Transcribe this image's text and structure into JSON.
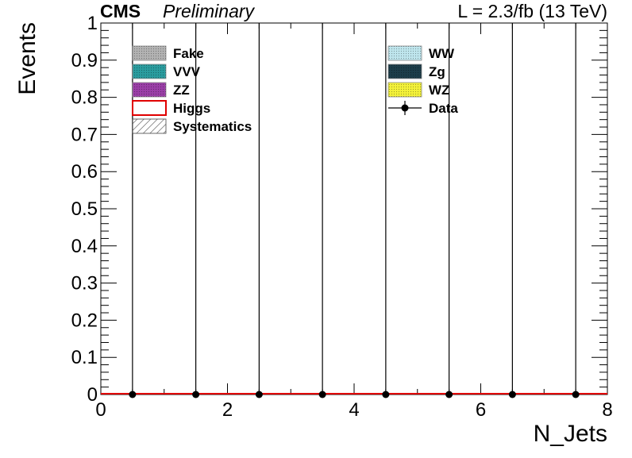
{
  "header": {
    "experiment": "CMS",
    "status": "Preliminary",
    "lumi": "L = 2.3/fb (13 TeV)"
  },
  "chart_data": {
    "type": "bar",
    "title": "",
    "xlabel": "N_Jets",
    "ylabel": "Events",
    "xlim": [
      0,
      8
    ],
    "ylim": [
      0,
      1
    ],
    "x_ticks": [
      0,
      2,
      4,
      6,
      8
    ],
    "x_tick_labels": [
      "0",
      "2",
      "4",
      "6",
      "8"
    ],
    "y_ticks": [
      0,
      0.1,
      0.2,
      0.3,
      0.4,
      0.5,
      0.6,
      0.7,
      0.8,
      0.9,
      1
    ],
    "y_tick_labels": [
      "0",
      "0.1",
      "0.2",
      "0.3",
      "0.4",
      "0.5",
      "0.6",
      "0.7",
      "0.8",
      "0.9",
      "1"
    ],
    "bin_edges": [
      0,
      1,
      2,
      3,
      4,
      5,
      6,
      7,
      8
    ],
    "bin_centers": [
      0.5,
      1.5,
      2.5,
      3.5,
      4.5,
      5.5,
      6.5,
      7.5
    ],
    "series": [
      {
        "name": "Fake",
        "values": [
          0,
          0,
          0,
          0,
          0,
          0,
          0,
          0
        ],
        "color": "#b3b3b3"
      },
      {
        "name": "WW",
        "values": [
          0,
          0,
          0,
          0,
          0,
          0,
          0,
          0
        ],
        "color": "#bfe6ee"
      },
      {
        "name": "VVV",
        "values": [
          0,
          0,
          0,
          0,
          0,
          0,
          0,
          0
        ],
        "color": "#2a9d9f"
      },
      {
        "name": "Zg",
        "values": [
          0,
          0,
          0,
          0,
          0,
          0,
          0,
          0
        ],
        "color": "#1c3d4a"
      },
      {
        "name": "ZZ",
        "values": [
          0,
          0,
          0,
          0,
          0,
          0,
          0,
          0
        ],
        "color": "#9b3fa8"
      },
      {
        "name": "WZ",
        "values": [
          0,
          0,
          0,
          0,
          0,
          0,
          0,
          0
        ],
        "color": "#f4f23a"
      },
      {
        "name": "Higgs",
        "values": [
          0,
          0,
          0,
          0,
          0,
          0,
          0,
          0
        ],
        "color": "#e00000"
      }
    ],
    "data": {
      "name": "Data",
      "values": [
        0,
        0,
        0,
        0,
        0,
        0,
        0,
        0
      ],
      "error_high": [
        1.8,
        1.8,
        1.8,
        1.8,
        1.8,
        1.8,
        1.8,
        1.8
      ]
    },
    "systematics": {
      "name": "Systematics"
    },
    "legend": {
      "position": "top",
      "left_column": [
        {
          "label": "Fake",
          "style": "fill",
          "color": "#b3b3b3"
        },
        {
          "label": "VVV",
          "style": "fill",
          "color": "#2a9d9f"
        },
        {
          "label": "ZZ",
          "style": "fill",
          "color": "#9b3fa8"
        },
        {
          "label": "Higgs",
          "style": "line-box",
          "color": "#e00000"
        },
        {
          "label": "Systematics",
          "style": "hatch",
          "color": "#444444"
        }
      ],
      "right_column": [
        {
          "label": "WW",
          "style": "fill",
          "color": "#bfe6ee"
        },
        {
          "label": "Zg",
          "style": "fill",
          "color": "#1c3d4a"
        },
        {
          "label": "WZ",
          "style": "fill",
          "color": "#f4f23a"
        },
        {
          "label": "Data",
          "style": "marker",
          "color": "#000000"
        }
      ]
    }
  }
}
